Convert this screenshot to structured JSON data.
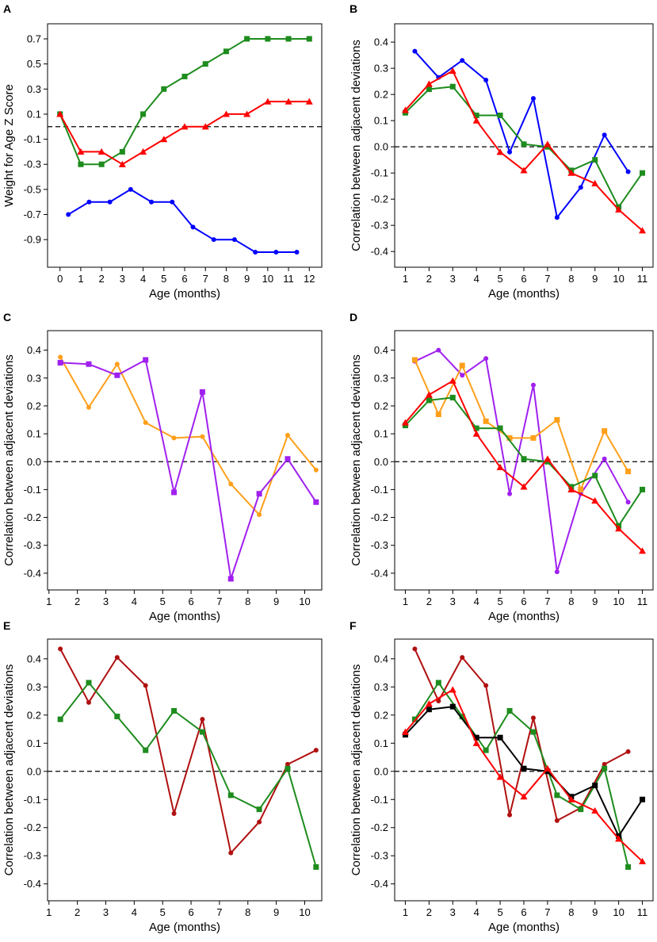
{
  "chart_data": [
    {
      "panel": "A",
      "type": "line",
      "xlabel": "Age (months)",
      "ylabel": "Weight for Age Z Score",
      "xlim": [
        -0.6,
        12.6
      ],
      "ylim": [
        -1.12,
        0.82
      ],
      "xticks": [
        0,
        1,
        2,
        3,
        4,
        5,
        6,
        7,
        8,
        9,
        10,
        11,
        12
      ],
      "yticks": [
        -0.9,
        -0.7,
        -0.5,
        -0.3,
        -0.1,
        0.1,
        0.3,
        0.5,
        0.7
      ],
      "ytick_labels": [
        "-0.9",
        "-0.7",
        "-0.5",
        "-0.3",
        "-0.1",
        "0.1",
        "0.3",
        "0.5",
        "0.7"
      ],
      "reference_line": 0.0,
      "series": [
        {
          "name": "blue",
          "color": "#0000ff",
          "marker": "circle",
          "x": [
            0.4,
            1.4,
            2.4,
            3.4,
            4.4,
            5.4,
            6.4,
            7.4,
            8.4,
            9.4,
            10.4,
            11.4
          ],
          "y": [
            -0.7,
            -0.6,
            -0.6,
            -0.5,
            -0.6,
            -0.6,
            -0.8,
            -0.9,
            -0.9,
            -1.0,
            -1.0,
            -1.0
          ]
        },
        {
          "name": "green",
          "color": "#1e8c1e",
          "marker": "square",
          "x": [
            0,
            1,
            2,
            3,
            4,
            5,
            6,
            7,
            8,
            9,
            10,
            11,
            12
          ],
          "y": [
            0.1,
            -0.3,
            -0.3,
            -0.2,
            0.1,
            0.3,
            0.4,
            0.5,
            0.6,
            0.7,
            0.7,
            0.7,
            0.7
          ]
        },
        {
          "name": "red",
          "color": "#ff0000",
          "marker": "triangle",
          "x": [
            0,
            1,
            2,
            3,
            4,
            5,
            6,
            7,
            8,
            9,
            10,
            11,
            12
          ],
          "y": [
            0.1,
            -0.2,
            -0.2,
            -0.3,
            -0.2,
            -0.1,
            0.0,
            0.0,
            0.1,
            0.1,
            0.2,
            0.2,
            0.2
          ]
        }
      ]
    },
    {
      "panel": "B",
      "type": "line",
      "xlabel": "Age (months)",
      "ylabel": "Correlation between adjacent deviations",
      "xlim": [
        0.55,
        11.45
      ],
      "ylim": [
        -0.46,
        0.47
      ],
      "xticks": [
        1,
        2,
        3,
        4,
        5,
        6,
        7,
        8,
        9,
        10,
        11
      ],
      "yticks": [
        -0.4,
        -0.3,
        -0.2,
        -0.1,
        0.0,
        0.1,
        0.2,
        0.3,
        0.4
      ],
      "ytick_labels": [
        "-0.4",
        "-0.3",
        "-0.2",
        "-0.1",
        "0.0",
        "0.1",
        "0.2",
        "0.3",
        "0.4"
      ],
      "reference_line": 0.0,
      "series": [
        {
          "name": "blue",
          "color": "#0000ff",
          "marker": "circle",
          "x": [
            1.4,
            2.4,
            3.4,
            4.4,
            5.4,
            6.4,
            7.4,
            8.4,
            9.4,
            10.4
          ],
          "y": [
            0.365,
            0.265,
            0.33,
            0.255,
            -0.02,
            0.185,
            -0.27,
            -0.155,
            0.045,
            -0.095
          ]
        },
        {
          "name": "green",
          "color": "#1e8c1e",
          "marker": "square",
          "x": [
            1,
            2,
            3,
            4,
            5,
            6,
            7,
            8,
            9,
            10,
            11
          ],
          "y": [
            0.13,
            0.22,
            0.23,
            0.12,
            0.12,
            0.01,
            0.0,
            -0.09,
            -0.05,
            -0.23,
            -0.1
          ]
        },
        {
          "name": "red",
          "color": "#ff0000",
          "marker": "triangle",
          "x": [
            1,
            2,
            3,
            4,
            5,
            6,
            7,
            8,
            9,
            10,
            11
          ],
          "y": [
            0.14,
            0.24,
            0.29,
            0.1,
            -0.02,
            -0.09,
            0.01,
            -0.1,
            -0.14,
            -0.24,
            -0.32
          ]
        }
      ]
    },
    {
      "panel": "C",
      "type": "line",
      "xlabel": "Age (months)",
      "ylabel": "Correlation between adjacent deviations",
      "xlim": [
        0.95,
        10.6
      ],
      "ylim": [
        -0.46,
        0.47
      ],
      "xticks": [
        1,
        2,
        3,
        4,
        5,
        6,
        7,
        8,
        9,
        10
      ],
      "yticks": [
        -0.4,
        -0.3,
        -0.2,
        -0.1,
        0.0,
        0.1,
        0.2,
        0.3,
        0.4
      ],
      "ytick_labels": [
        "-0.4",
        "-0.3",
        "-0.2",
        "-0.1",
        "0.0",
        "0.1",
        "0.2",
        "0.3",
        "0.4"
      ],
      "reference_line": 0.0,
      "series": [
        {
          "name": "orange",
          "color": "#ff9f1a",
          "marker": "circle",
          "x": [
            1.4,
            2.4,
            3.4,
            4.4,
            5.4,
            6.4,
            7.4,
            8.4,
            9.4,
            10.4
          ],
          "y": [
            0.375,
            0.195,
            0.35,
            0.14,
            0.085,
            0.09,
            -0.08,
            -0.19,
            0.095,
            -0.03
          ]
        },
        {
          "name": "purple",
          "color": "#a020f0",
          "marker": "square",
          "x": [
            1.4,
            2.4,
            3.4,
            4.4,
            5.4,
            6.4,
            7.4,
            8.4,
            9.4,
            10.4
          ],
          "y": [
            0.355,
            0.35,
            0.31,
            0.365,
            -0.11,
            0.25,
            -0.42,
            -0.115,
            0.01,
            -0.145
          ]
        }
      ]
    },
    {
      "panel": "D",
      "type": "line",
      "xlabel": "Age (months)",
      "ylabel": "Correlation between adjacent deviations",
      "xlim": [
        0.55,
        11.45
      ],
      "ylim": [
        -0.46,
        0.47
      ],
      "xticks": [
        1,
        2,
        3,
        4,
        5,
        6,
        7,
        8,
        9,
        10,
        11
      ],
      "yticks": [
        -0.4,
        -0.3,
        -0.2,
        -0.1,
        0.0,
        0.1,
        0.2,
        0.3,
        0.4
      ],
      "ytick_labels": [
        "-0.4",
        "-0.3",
        "-0.2",
        "-0.1",
        "0.0",
        "0.1",
        "0.2",
        "0.3",
        "0.4"
      ],
      "reference_line": 0.0,
      "series": [
        {
          "name": "purple",
          "color": "#a020f0",
          "marker": "circle",
          "x": [
            1.4,
            2.4,
            3.4,
            4.4,
            5.4,
            6.4,
            7.4,
            8.4,
            9.4,
            10.4
          ],
          "y": [
            0.36,
            0.4,
            0.31,
            0.37,
            -0.115,
            0.275,
            -0.395,
            -0.115,
            0.01,
            -0.145
          ]
        },
        {
          "name": "orange",
          "color": "#ff9f1a",
          "marker": "square",
          "x": [
            1.4,
            2.4,
            3.4,
            4.4,
            5.4,
            6.4,
            7.4,
            8.4,
            9.4,
            10.4
          ],
          "y": [
            0.365,
            0.17,
            0.345,
            0.145,
            0.085,
            0.085,
            0.15,
            -0.1,
            0.11,
            -0.035
          ]
        },
        {
          "name": "green",
          "color": "#1e8c1e",
          "marker": "square",
          "x": [
            1,
            2,
            3,
            4,
            5,
            6,
            7,
            8,
            9,
            10,
            11
          ],
          "y": [
            0.13,
            0.22,
            0.23,
            0.12,
            0.12,
            0.01,
            0.0,
            -0.09,
            -0.05,
            -0.23,
            -0.1
          ]
        },
        {
          "name": "red",
          "color": "#ff0000",
          "marker": "triangle",
          "x": [
            1,
            2,
            3,
            4,
            5,
            6,
            7,
            8,
            9,
            10,
            11
          ],
          "y": [
            0.14,
            0.24,
            0.29,
            0.1,
            -0.02,
            -0.09,
            0.01,
            -0.1,
            -0.14,
            -0.24,
            -0.32
          ]
        }
      ]
    },
    {
      "panel": "E",
      "type": "line",
      "xlabel": "Age (months)",
      "ylabel": "Correlation between adjacent deviations",
      "xlim": [
        0.95,
        10.6
      ],
      "ylim": [
        -0.46,
        0.47
      ],
      "xticks": [
        1,
        2,
        3,
        4,
        5,
        6,
        7,
        8,
        9,
        10
      ],
      "yticks": [
        -0.4,
        -0.3,
        -0.2,
        -0.1,
        0.0,
        0.1,
        0.2,
        0.3,
        0.4
      ],
      "ytick_labels": [
        "-0.4",
        "-0.3",
        "-0.2",
        "-0.1",
        "0.0",
        "0.1",
        "0.2",
        "0.3",
        "0.4"
      ],
      "reference_line": 0.0,
      "series": [
        {
          "name": "darkred",
          "color": "#b01010",
          "marker": "circle",
          "x": [
            1.4,
            2.4,
            3.4,
            4.4,
            5.4,
            6.4,
            7.4,
            8.4,
            9.4,
            10.4
          ],
          "y": [
            0.435,
            0.245,
            0.405,
            0.305,
            -0.15,
            0.185,
            -0.29,
            -0.18,
            0.025,
            0.075
          ]
        },
        {
          "name": "green",
          "color": "#1e8c1e",
          "marker": "square",
          "x": [
            1.4,
            2.4,
            3.4,
            4.4,
            5.4,
            6.4,
            7.4,
            8.4,
            9.4,
            10.4
          ],
          "y": [
            0.185,
            0.315,
            0.195,
            0.075,
            0.215,
            0.14,
            -0.085,
            -0.135,
            0.01,
            -0.34
          ]
        }
      ]
    },
    {
      "panel": "F",
      "type": "line",
      "xlabel": "Age (months)",
      "ylabel": "Correlation between adjacent deviations",
      "xlim": [
        0.55,
        11.45
      ],
      "ylim": [
        -0.46,
        0.47
      ],
      "xticks": [
        1,
        2,
        3,
        4,
        5,
        6,
        7,
        8,
        9,
        10,
        11
      ],
      "yticks": [
        -0.4,
        -0.3,
        -0.2,
        -0.1,
        0.0,
        0.1,
        0.2,
        0.3,
        0.4
      ],
      "ytick_labels": [
        "-0.4",
        "-0.3",
        "-0.2",
        "-0.1",
        "0.0",
        "0.1",
        "0.2",
        "0.3",
        "0.4"
      ],
      "reference_line": 0.0,
      "series": [
        {
          "name": "darkred",
          "color": "#b01010",
          "marker": "circle",
          "x": [
            1.4,
            2.4,
            3.4,
            4.4,
            5.4,
            6.4,
            7.4,
            8.4,
            9.4,
            10.4
          ],
          "y": [
            0.435,
            0.25,
            0.405,
            0.305,
            -0.155,
            0.19,
            -0.175,
            -0.13,
            0.025,
            0.07
          ]
        },
        {
          "name": "green",
          "color": "#1e8c1e",
          "marker": "square",
          "x": [
            1.4,
            2.4,
            3.4,
            4.4,
            5.4,
            6.4,
            7.4,
            8.4,
            9.4,
            10.4
          ],
          "y": [
            0.185,
            0.315,
            0.195,
            0.075,
            0.215,
            0.14,
            -0.085,
            -0.135,
            0.01,
            -0.34
          ]
        },
        {
          "name": "black",
          "color": "#000000",
          "marker": "square",
          "x": [
            1,
            2,
            3,
            4,
            5,
            6,
            7,
            8,
            9,
            10,
            11
          ],
          "y": [
            0.13,
            0.22,
            0.23,
            0.12,
            0.12,
            0.01,
            0.0,
            -0.09,
            -0.05,
            -0.23,
            -0.1
          ]
        },
        {
          "name": "red",
          "color": "#ff0000",
          "marker": "triangle",
          "x": [
            1,
            2,
            3,
            4,
            5,
            6,
            7,
            8,
            9,
            10,
            11
          ],
          "y": [
            0.14,
            0.24,
            0.29,
            0.1,
            -0.02,
            -0.09,
            0.01,
            -0.1,
            -0.14,
            -0.24,
            -0.32
          ]
        }
      ]
    }
  ]
}
